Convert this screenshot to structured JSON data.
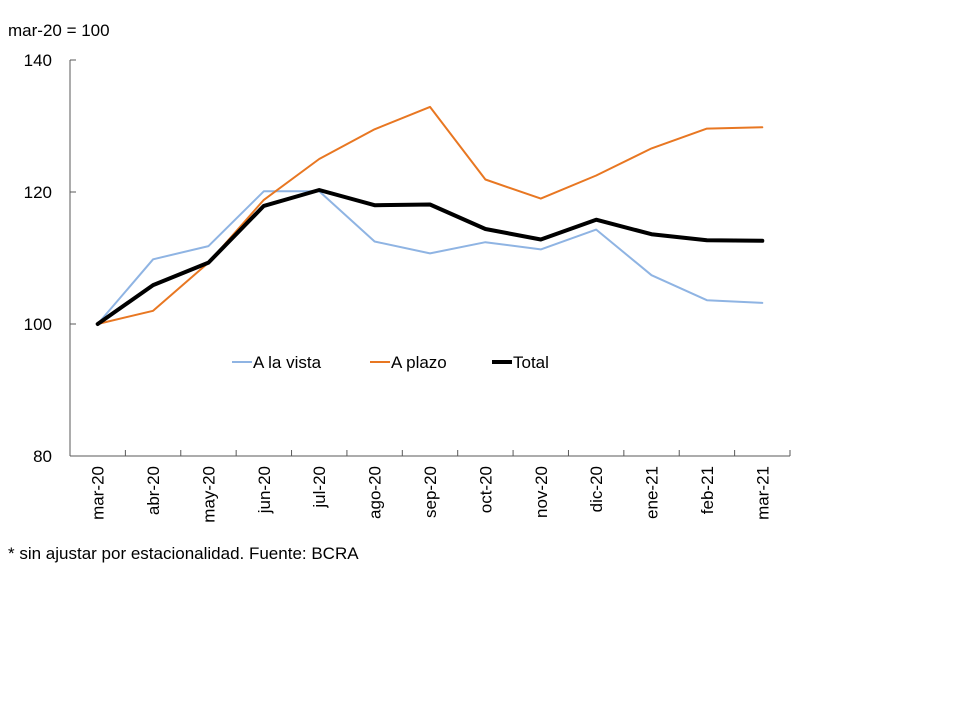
{
  "unit_label": "mar-20 = 100",
  "footnote": "* sin ajustar por estacionalidad. Fuente: BCRA",
  "chart_data": {
    "type": "line",
    "title": "",
    "xlabel": "",
    "ylabel": "mar-20 = 100",
    "ylim": [
      80,
      140
    ],
    "yticks": [
      80,
      100,
      120,
      140
    ],
    "grid": false,
    "legend_position": "center-left-inside",
    "categories": [
      "mar-20",
      "abr-20",
      "may-20",
      "jun-20",
      "jul-20",
      "ago-20",
      "sep-20",
      "oct-20",
      "nov-20",
      "dic-20",
      "ene-21",
      "feb-21",
      "mar-21"
    ],
    "series": [
      {
        "name": "A la vista",
        "color": "#8FB4E3",
        "values": [
          100,
          109.8,
          111.8,
          120.1,
          120.1,
          112.5,
          110.7,
          112.4,
          111.3,
          114.3,
          107.4,
          103.6,
          103.2
        ]
      },
      {
        "name": "A plazo",
        "color": "#E87722",
        "values": [
          100,
          102.0,
          109.3,
          118.8,
          125.0,
          129.5,
          132.9,
          121.9,
          119.0,
          122.5,
          126.6,
          129.6,
          129.8
        ]
      },
      {
        "name": "Total",
        "color": "#000000",
        "values": [
          100,
          105.9,
          109.3,
          117.9,
          120.3,
          118.0,
          118.1,
          114.4,
          112.8,
          115.8,
          113.6,
          112.7,
          112.6
        ]
      }
    ]
  }
}
